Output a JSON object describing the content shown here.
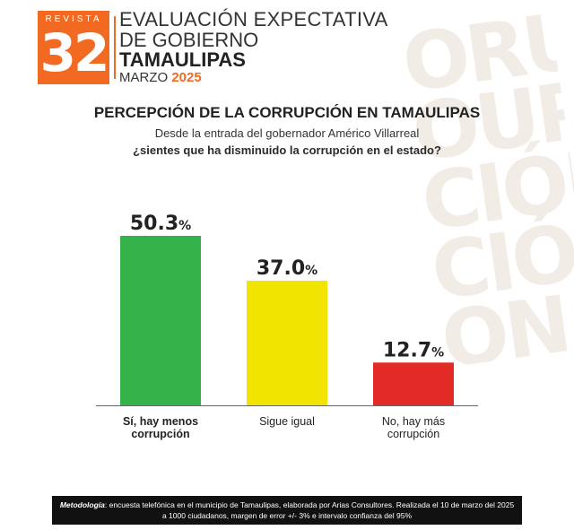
{
  "header": {
    "logo_word": "REVISTA",
    "logo_number": "32",
    "line1": "EVALUACIÓN EXPECTATIVA",
    "line2": "DE GOBIERNO",
    "line3": "TAMAULIPAS",
    "month": "MARZO",
    "year": "2025"
  },
  "chart_data": {
    "type": "bar",
    "title": "PERCEPCIÓN DE LA CORRUPCIÓN EN TAMAULIPAS",
    "subtitle": "Desde la entrada del gobernador Américo Villarreal",
    "question": "¿sientes que ha disminuido la corrupción en el estado?",
    "categories": [
      "Sí, hay menos corrupción",
      "Sigue igual",
      "No, hay más corrupción"
    ],
    "category_lines": [
      [
        "Sí, hay menos",
        "corrupción"
      ],
      [
        "Sigue igual"
      ],
      [
        "No, hay más",
        "corrupción"
      ]
    ],
    "values": [
      50.3,
      37.0,
      12.7
    ],
    "value_labels": [
      "50.3",
      "37.0",
      "12.7"
    ],
    "unit": "%",
    "colors": [
      "#35b24a",
      "#f1e400",
      "#e22b27"
    ],
    "ylim": [
      0,
      50.3
    ],
    "grid": false,
    "legend": "none"
  },
  "footer": {
    "label": "Metodología",
    "text": ": encuesta telefónica en el municipio de Tamaulipas, elaborada por Arias Consultores. Realizada el 10 de marzo del 2025 a 1000 ciudadanos, margen de error +/- 3% e intervalo confianza del 95%"
  }
}
